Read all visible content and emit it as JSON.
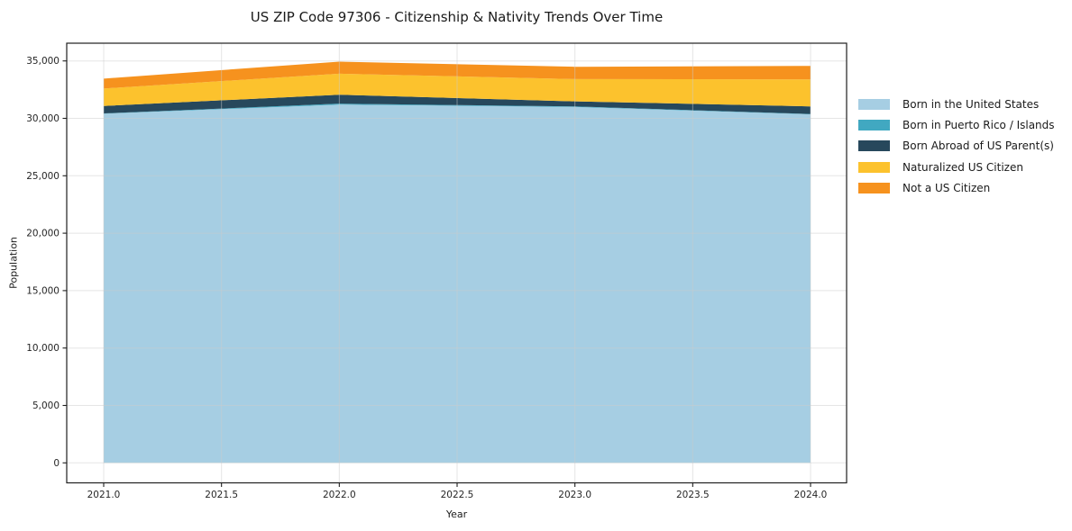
{
  "chart_data": {
    "type": "area",
    "stacked": true,
    "title": "US ZIP Code 97306 - Citizenship & Nativity Trends Over Time",
    "xlabel": "Year",
    "ylabel": "Population",
    "x": [
      2021,
      2022,
      2023,
      2024
    ],
    "series": [
      {
        "name": "Born in the United States",
        "color": "#a6cee3",
        "values": [
          30400,
          31200,
          30990,
          30350
        ]
      },
      {
        "name": "Born in Puerto Rico / Islands",
        "color": "#41a8c1",
        "values": [
          30,
          80,
          50,
          30
        ]
      },
      {
        "name": "Born Abroad of US Parent(s)",
        "color": "#27485c",
        "values": [
          650,
          780,
          440,
          660
        ]
      },
      {
        "name": "Naturalized US Citizen",
        "color": "#fcc22d",
        "values": [
          1520,
          1830,
          1940,
          2350
        ]
      },
      {
        "name": "Not a US Citizen",
        "color": "#f6921e",
        "values": [
          860,
          1050,
          1070,
          1175
        ]
      }
    ],
    "totals": [
      33460,
      34940,
      34490,
      34565
    ],
    "xticks": {
      "values": [
        2021.0,
        2021.5,
        2022.0,
        2022.5,
        2023.0,
        2023.5,
        2024.0
      ],
      "labels": [
        "2021.0",
        "2021.5",
        "2022.0",
        "2022.5",
        "2023.0",
        "2023.5",
        "2024.0"
      ]
    },
    "yticks": {
      "values": [
        0,
        5000,
        10000,
        15000,
        20000,
        25000,
        30000,
        35000
      ],
      "labels": [
        "0",
        "5,000",
        "10,000",
        "15,000",
        "20,000",
        "25,000",
        "30,000",
        "35,000"
      ]
    },
    "xlim": [
      2020.84,
      2024.15
    ],
    "ylim": [
      -1700,
      36550
    ],
    "grid": true,
    "legend_position": "right-outside",
    "background_color": "#ffffff",
    "spine_color": "#1f1f1f",
    "gridline_color": "#cccccc"
  }
}
